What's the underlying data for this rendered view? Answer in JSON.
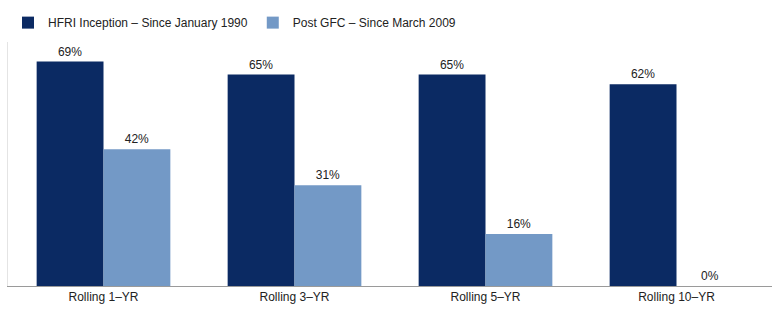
{
  "chart_data": {
    "type": "bar",
    "categories": [
      "Rolling 1–YR",
      "Rolling 3–YR",
      "Rolling 5–YR",
      "Rolling 10–YR"
    ],
    "series": [
      {
        "name": "HFRI Inception – Since January 1990",
        "color": "#0b2a63",
        "values": [
          69,
          65,
          65,
          62
        ],
        "value_labels": [
          "69%",
          "65%",
          "65%",
          "62%"
        ]
      },
      {
        "name": "Post GFC – Since March 2009",
        "color": "#7399c6",
        "values": [
          42,
          31,
          16,
          0
        ],
        "value_labels": [
          "42%",
          "31%",
          "16%",
          "0%"
        ]
      }
    ],
    "ylim": [
      0,
      75
    ],
    "yticks": [],
    "grid": false,
    "legend": "top left",
    "data_labels": true,
    "tick_labels": "x"
  }
}
